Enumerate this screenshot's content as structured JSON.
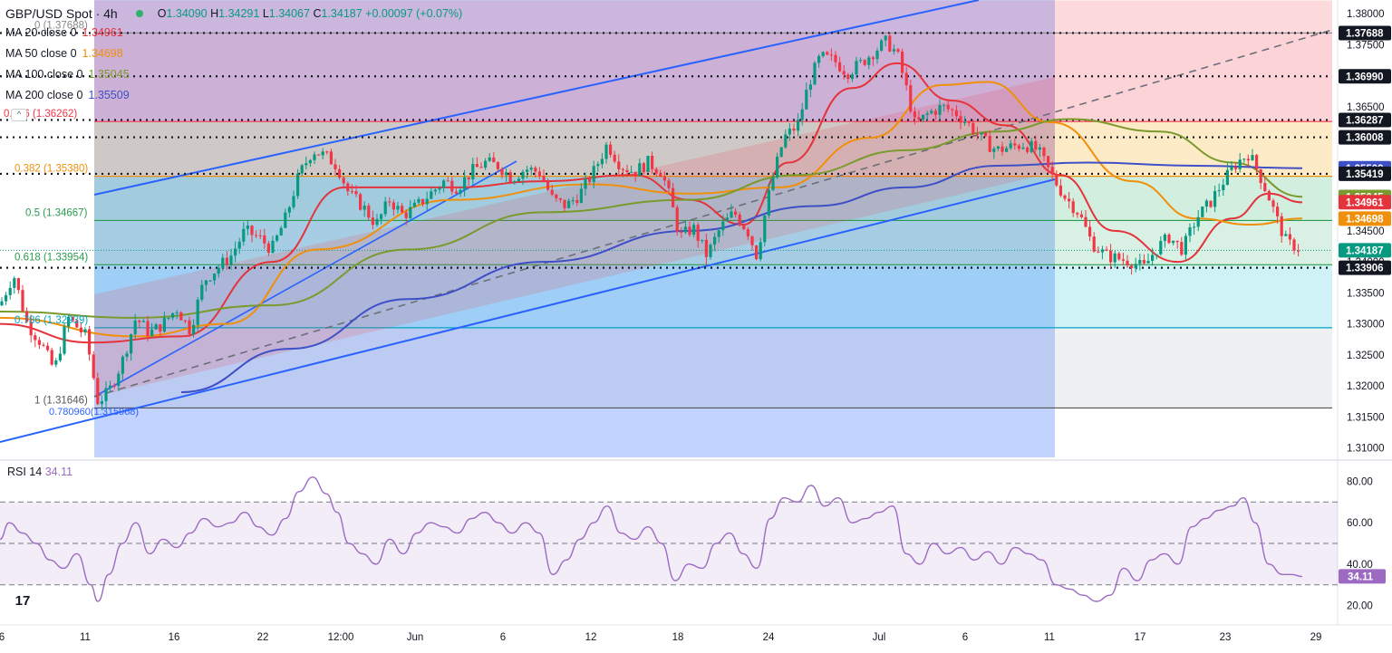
{
  "header": {
    "symbol": "GBP/USD Spot · 4h",
    "open": "1.34090",
    "high": "1.34291",
    "low": "1.34067",
    "close": "1.34187",
    "change": "+0.00097 (+0.07%)"
  },
  "moving_averages": [
    {
      "label": "MA 20 close 0",
      "value": "1.34961",
      "color": "#e5333b"
    },
    {
      "label": "MA 50 close 0",
      "value": "1.34698",
      "color": "#f0900a"
    },
    {
      "label": "MA 100 close 0",
      "value": "1.35045",
      "color": "#7a9a2e"
    },
    {
      "label": "MA 200 close 0",
      "value": "1.35509",
      "color": "#3f4fc7"
    }
  ],
  "rsi": {
    "label": "RSI 14",
    "value": "34.11",
    "color": "#9c6ac2"
  },
  "colors": {
    "up": "#089981",
    "down": "#f23645",
    "channel": "#2962ff",
    "grid_text": "#131722"
  },
  "chart_data": {
    "type": "candlestick",
    "title": "GBP/USD Spot · 4h",
    "x_ticks": [
      "6",
      "11",
      "16",
      "22",
      "12:00",
      "Jun",
      "6",
      "12",
      "18",
      "24",
      "Jul",
      "6",
      "11",
      "17",
      "23",
      "29"
    ],
    "y_ticks": [
      "1.38000",
      "1.37500",
      "1.37000",
      "1.36500",
      "1.36000",
      "1.35500",
      "1.35000",
      "1.34500",
      "1.34000",
      "1.33500",
      "1.33000",
      "1.32500",
      "1.32000",
      "1.31500",
      "1.31000"
    ],
    "ylim": [
      1.3085,
      1.3822
    ],
    "close_path": [
      [
        0,
        1.333
      ],
      [
        15,
        1.338
      ],
      [
        30,
        1.33
      ],
      [
        45,
        1.327
      ],
      [
        60,
        1.3225
      ],
      [
        75,
        1.331
      ],
      [
        95,
        1.328
      ],
      [
        108,
        1.3175
      ],
      [
        120,
        1.319
      ],
      [
        135,
        1.324
      ],
      [
        150,
        1.331
      ],
      [
        165,
        1.3285
      ],
      [
        180,
        1.33
      ],
      [
        195,
        1.3325
      ],
      [
        210,
        1.329
      ],
      [
        225,
        1.337
      ],
      [
        240,
        1.339
      ],
      [
        255,
        1.341
      ],
      [
        270,
        1.345
      ],
      [
        285,
        1.344
      ],
      [
        300,
        1.342
      ],
      [
        315,
        1.347
      ],
      [
        330,
        1.354
      ],
      [
        345,
        1.358
      ],
      [
        360,
        1.357
      ],
      [
        372,
        1.3555
      ],
      [
        385,
        1.351
      ],
      [
        400,
        1.349
      ],
      [
        415,
        1.346
      ],
      [
        430,
        1.35
      ],
      [
        445,
        1.3475
      ],
      [
        460,
        1.349
      ],
      [
        475,
        1.351
      ],
      [
        490,
        1.353
      ],
      [
        505,
        1.352
      ],
      [
        520,
        1.3545
      ],
      [
        535,
        1.356
      ],
      [
        550,
        1.3555
      ],
      [
        565,
        1.3535
      ],
      [
        580,
        1.355
      ],
      [
        595,
        1.3545
      ],
      [
        610,
        1.35
      ],
      [
        625,
        1.349
      ],
      [
        640,
        1.351
      ],
      [
        655,
        1.3545
      ],
      [
        670,
        1.359
      ],
      [
        685,
        1.3555
      ],
      [
        700,
        1.3545
      ],
      [
        715,
        1.356
      ],
      [
        730,
        1.3545
      ],
      [
        740,
        1.35
      ],
      [
        750,
        1.344
      ],
      [
        765,
        1.3455
      ],
      [
        780,
        1.341
      ],
      [
        795,
        1.3455
      ],
      [
        810,
        1.348
      ],
      [
        825,
        1.345
      ],
      [
        835,
        1.341
      ],
      [
        850,
        1.352
      ],
      [
        865,
        1.36
      ],
      [
        880,
        1.362
      ],
      [
        893,
        1.369
      ],
      [
        905,
        1.373
      ],
      [
        920,
        1.3725
      ],
      [
        935,
        1.3705
      ],
      [
        950,
        1.372
      ],
      [
        965,
        1.374
      ],
      [
        978,
        1.3755
      ],
      [
        990,
        1.3735
      ],
      [
        1000,
        1.368
      ],
      [
        1010,
        1.362
      ],
      [
        1025,
        1.364
      ],
      [
        1040,
        1.365
      ],
      [
        1055,
        1.364
      ],
      [
        1070,
        1.362
      ],
      [
        1085,
        1.3595
      ],
      [
        1100,
        1.358
      ],
      [
        1115,
        1.3585
      ],
      [
        1130,
        1.359
      ],
      [
        1145,
        1.358
      ],
      [
        1160,
        1.354
      ],
      [
        1175,
        1.3505
      ],
      [
        1190,
        1.348
      ],
      [
        1205,
        1.343
      ],
      [
        1220,
        1.341
      ],
      [
        1235,
        1.3405
      ],
      [
        1250,
        1.34
      ],
      [
        1262,
        1.339
      ],
      [
        1275,
        1.342
      ],
      [
        1290,
        1.344
      ],
      [
        1305,
        1.342
      ],
      [
        1320,
        1.347
      ],
      [
        1335,
        1.3495
      ],
      [
        1350,
        1.353
      ],
      [
        1365,
        1.356
      ],
      [
        1378,
        1.3575
      ],
      [
        1390,
        1.354
      ],
      [
        1400,
        1.3505
      ],
      [
        1410,
        1.3465
      ],
      [
        1420,
        1.343
      ],
      [
        1430,
        1.3425
      ],
      [
        1437,
        1.3419
      ]
    ],
    "ma_paths": {
      "ma20": [
        [
          0,
          1.33
        ],
        [
          100,
          1.327
        ],
        [
          200,
          1.328
        ],
        [
          300,
          1.34
        ],
        [
          380,
          1.352
        ],
        [
          500,
          1.352
        ],
        [
          600,
          1.353
        ],
        [
          700,
          1.354
        ],
        [
          760,
          1.35
        ],
        [
          820,
          1.346
        ],
        [
          870,
          1.356
        ],
        [
          940,
          1.368
        ],
        [
          990,
          1.372
        ],
        [
          1050,
          1.366
        ],
        [
          1110,
          1.362
        ],
        [
          1170,
          1.354
        ],
        [
          1230,
          1.345
        ],
        [
          1300,
          1.34
        ],
        [
          1360,
          1.347
        ],
        [
          1400,
          1.351
        ],
        [
          1437,
          1.3496
        ]
      ],
      "ma50": [
        [
          0,
          1.331
        ],
        [
          150,
          1.328
        ],
        [
          250,
          1.33
        ],
        [
          350,
          1.342
        ],
        [
          500,
          1.35
        ],
        [
          650,
          1.3525
        ],
        [
          760,
          1.351
        ],
        [
          860,
          1.352
        ],
        [
          960,
          1.36
        ],
        [
          1040,
          1.3685
        ],
        [
          1090,
          1.369
        ],
        [
          1160,
          1.3625
        ],
        [
          1250,
          1.353
        ],
        [
          1320,
          1.347
        ],
        [
          1380,
          1.346
        ],
        [
          1437,
          1.347
        ]
      ],
      "ma100": [
        [
          0,
          1.332
        ],
        [
          150,
          1.331
        ],
        [
          300,
          1.333
        ],
        [
          450,
          1.342
        ],
        [
          600,
          1.348
        ],
        [
          760,
          1.35
        ],
        [
          880,
          1.354
        ],
        [
          1000,
          1.358
        ],
        [
          1100,
          1.361
        ],
        [
          1180,
          1.363
        ],
        [
          1280,
          1.361
        ],
        [
          1360,
          1.356
        ],
        [
          1437,
          1.3505
        ]
      ],
      "ma200": [
        [
          200,
          1.319
        ],
        [
          320,
          1.326
        ],
        [
          450,
          1.334
        ],
        [
          600,
          1.34
        ],
        [
          760,
          1.345
        ],
        [
          900,
          1.349
        ],
        [
          1000,
          1.352
        ],
        [
          1100,
          1.3555
        ],
        [
          1200,
          1.356
        ],
        [
          1320,
          1.3555
        ],
        [
          1437,
          1.3551
        ]
      ]
    },
    "horizontal_levels": [
      "1.37688",
      "1.36990",
      "1.36287",
      "1.36008",
      "1.35419",
      "1.33906"
    ],
    "fibonacci": [
      {
        "label": "0 (1.37688)",
        "value": 1.37688
      },
      {
        "label": "0.236 (1.36262)",
        "value": 1.36262
      },
      {
        "label": "0.382 (1.35380)",
        "value": 1.3538
      },
      {
        "label": "0.5 (1.34667)",
        "value": 1.34667
      },
      {
        "label": "0.618 (1.33954)",
        "value": 1.33954
      },
      {
        "label": "0.786 (1.32939)",
        "value": 1.32939
      },
      {
        "label": "1 (1.31646)",
        "value": 1.31646
      }
    ],
    "fib_extra_label": "0.780960(1.315968)",
    "price_tags": [
      {
        "value": "1.37688",
        "price": 1.37688,
        "bg": "#131722",
        "fg": "#ffffff"
      },
      {
        "value": "1.36990",
        "price": 1.3699,
        "bg": "#131722",
        "fg": "#ffffff"
      },
      {
        "value": "1.36287",
        "price": 1.36287,
        "bg": "#131722",
        "fg": "#ffffff"
      },
      {
        "value": "1.36008",
        "price": 1.36008,
        "bg": "#131722",
        "fg": "#ffffff"
      },
      {
        "value": "1.35509",
        "price": 1.35509,
        "bg": "#3f4fc7",
        "fg": "#ffffff"
      },
      {
        "value": "1.35419",
        "price": 1.35419,
        "bg": "#131722",
        "fg": "#ffffff"
      },
      {
        "value": "1.35045",
        "price": 1.35045,
        "bg": "#7a9a2e",
        "fg": "#ffffff"
      },
      {
        "value": "1.34961",
        "price": 1.34961,
        "bg": "#e5333b",
        "fg": "#ffffff"
      },
      {
        "value": "1.34698",
        "price": 1.34698,
        "bg": "#f0900a",
        "fg": "#ffffff"
      },
      {
        "value": "1.34187",
        "price": 1.34187,
        "bg": "#089981",
        "fg": "#ffffff"
      },
      {
        "value": "1.33906",
        "price": 1.33906,
        "bg": "#131722",
        "fg": "#ffffff"
      }
    ],
    "rsi_ticks": [
      "80.00",
      "60.00",
      "40.00",
      "20.00"
    ],
    "rsi_ylim": [
      15,
      85
    ],
    "rsi_path": [
      [
        0,
        52
      ],
      [
        10,
        60
      ],
      [
        25,
        55
      ],
      [
        40,
        50
      ],
      [
        55,
        42
      ],
      [
        70,
        38
      ],
      [
        85,
        45
      ],
      [
        100,
        30
      ],
      [
        108,
        22
      ],
      [
        120,
        35
      ],
      [
        135,
        50
      ],
      [
        150,
        60
      ],
      [
        165,
        45
      ],
      [
        180,
        52
      ],
      [
        195,
        48
      ],
      [
        210,
        55
      ],
      [
        225,
        62
      ],
      [
        240,
        58
      ],
      [
        255,
        60
      ],
      [
        270,
        65
      ],
      [
        285,
        58
      ],
      [
        300,
        54
      ],
      [
        315,
        62
      ],
      [
        330,
        75
      ],
      [
        345,
        82
      ],
      [
        360,
        74
      ],
      [
        372,
        65
      ],
      [
        385,
        50
      ],
      [
        400,
        45
      ],
      [
        415,
        40
      ],
      [
        430,
        52
      ],
      [
        445,
        45
      ],
      [
        460,
        55
      ],
      [
        475,
        60
      ],
      [
        490,
        58
      ],
      [
        505,
        55
      ],
      [
        520,
        62
      ],
      [
        535,
        65
      ],
      [
        550,
        60
      ],
      [
        565,
        55
      ],
      [
        580,
        60
      ],
      [
        595,
        55
      ],
      [
        610,
        35
      ],
      [
        625,
        42
      ],
      [
        640,
        52
      ],
      [
        655,
        60
      ],
      [
        670,
        68
      ],
      [
        685,
        55
      ],
      [
        700,
        52
      ],
      [
        715,
        58
      ],
      [
        730,
        50
      ],
      [
        745,
        32
      ],
      [
        760,
        40
      ],
      [
        775,
        38
      ],
      [
        790,
        50
      ],
      [
        805,
        55
      ],
      [
        820,
        45
      ],
      [
        835,
        38
      ],
      [
        850,
        62
      ],
      [
        865,
        72
      ],
      [
        880,
        70
      ],
      [
        895,
        78
      ],
      [
        910,
        68
      ],
      [
        925,
        72
      ],
      [
        940,
        60
      ],
      [
        955,
        62
      ],
      [
        970,
        65
      ],
      [
        985,
        68
      ],
      [
        1000,
        45
      ],
      [
        1015,
        40
      ],
      [
        1030,
        50
      ],
      [
        1045,
        45
      ],
      [
        1060,
        48
      ],
      [
        1075,
        42
      ],
      [
        1090,
        46
      ],
      [
        1105,
        40
      ],
      [
        1120,
        48
      ],
      [
        1135,
        45
      ],
      [
        1150,
        42
      ],
      [
        1165,
        30
      ],
      [
        1180,
        28
      ],
      [
        1195,
        25
      ],
      [
        1210,
        22
      ],
      [
        1225,
        25
      ],
      [
        1240,
        38
      ],
      [
        1255,
        32
      ],
      [
        1270,
        42
      ],
      [
        1285,
        45
      ],
      [
        1300,
        40
      ],
      [
        1315,
        58
      ],
      [
        1330,
        62
      ],
      [
        1345,
        66
      ],
      [
        1360,
        68
      ],
      [
        1372,
        72
      ],
      [
        1385,
        60
      ],
      [
        1400,
        40
      ],
      [
        1415,
        35
      ],
      [
        1425,
        35
      ],
      [
        1437,
        34
      ]
    ]
  }
}
